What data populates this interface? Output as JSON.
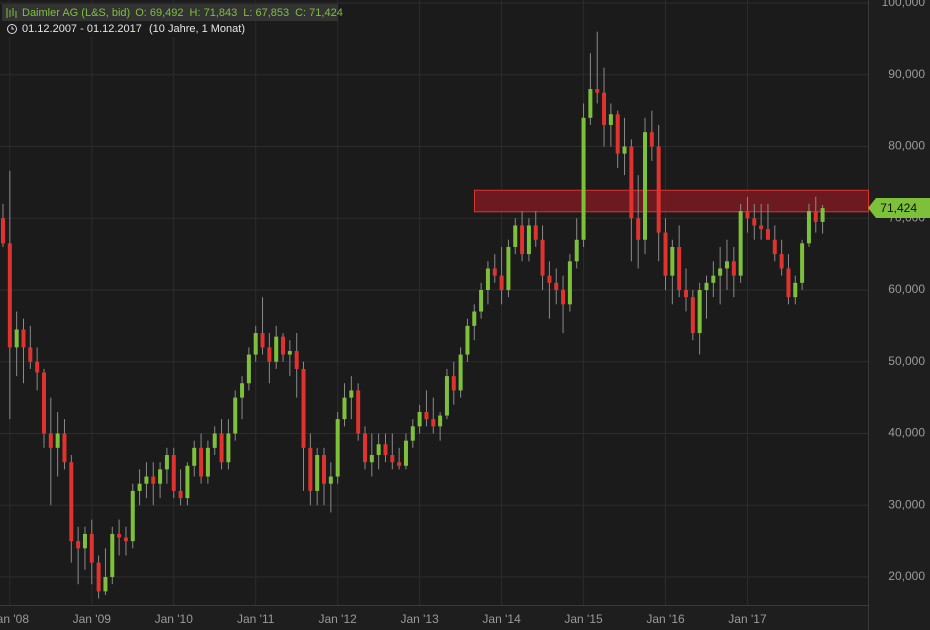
{
  "chart_data": {
    "type": "candlestick",
    "title": "Daimler AG (L&S, bid)",
    "ohlc_labels": [
      "O: 69,492",
      "H: 71,843",
      "L: 67,853",
      "C: 71,424"
    ],
    "period": "01.12.2007 - 01.12.2017",
    "period_note": "(10 Jahre, 1 Monat)",
    "x": [
      "2007-12",
      "2008-01",
      "2008-02",
      "2008-03",
      "2008-04",
      "2008-05",
      "2008-06",
      "2008-07",
      "2008-08",
      "2008-09",
      "2008-10",
      "2008-11",
      "2008-12",
      "2009-01",
      "2009-02",
      "2009-03",
      "2009-04",
      "2009-05",
      "2009-06",
      "2009-07",
      "2009-08",
      "2009-09",
      "2009-10",
      "2009-11",
      "2009-12",
      "2010-01",
      "2010-02",
      "2010-03",
      "2010-04",
      "2010-05",
      "2010-06",
      "2010-07",
      "2010-08",
      "2010-09",
      "2010-10",
      "2010-11",
      "2010-12",
      "2011-01",
      "2011-02",
      "2011-03",
      "2011-04",
      "2011-05",
      "2011-06",
      "2011-07",
      "2011-08",
      "2011-09",
      "2011-10",
      "2011-11",
      "2011-12",
      "2012-01",
      "2012-02",
      "2012-03",
      "2012-04",
      "2012-05",
      "2012-06",
      "2012-07",
      "2012-08",
      "2012-09",
      "2012-10",
      "2012-11",
      "2012-12",
      "2013-01",
      "2013-02",
      "2013-03",
      "2013-04",
      "2013-05",
      "2013-06",
      "2013-07",
      "2013-08",
      "2013-09",
      "2013-10",
      "2013-11",
      "2013-12",
      "2014-01",
      "2014-02",
      "2014-03",
      "2014-04",
      "2014-05",
      "2014-06",
      "2014-07",
      "2014-08",
      "2014-09",
      "2014-10",
      "2014-11",
      "2014-12",
      "2015-01",
      "2015-02",
      "2015-03",
      "2015-04",
      "2015-05",
      "2015-06",
      "2015-07",
      "2015-08",
      "2015-09",
      "2015-10",
      "2015-11",
      "2015-12",
      "2016-01",
      "2016-02",
      "2016-03",
      "2016-04",
      "2016-05",
      "2016-06",
      "2016-07",
      "2016-08",
      "2016-09",
      "2016-10",
      "2016-11",
      "2016-12",
      "2017-01",
      "2017-02",
      "2017-03",
      "2017-04",
      "2017-05",
      "2017-06",
      "2017-07",
      "2017-08",
      "2017-09",
      "2017-10",
      "2017-11",
      "2017-12"
    ],
    "open": [
      70000,
      66500,
      52000,
      54500,
      52000,
      50000,
      48500,
      40000,
      38000,
      40000,
      36000,
      25000,
      24000,
      26000,
      22000,
      18000,
      20000,
      26000,
      25500,
      25000,
      32000,
      33000,
      34000,
      33000,
      35000,
      37000,
      32000,
      31000,
      35500,
      38000,
      34000,
      38000,
      40000,
      36000,
      40000,
      45000,
      47000,
      51000,
      54000,
      52000,
      50000,
      53500,
      51000,
      51500,
      49000,
      38000,
      32000,
      37000,
      33000,
      34000,
      42000,
      45000,
      46000,
      40000,
      36000,
      37000,
      38500,
      37000,
      36000,
      35500,
      39000,
      41000,
      43000,
      42000,
      41000,
      42500,
      48000,
      46000,
      51000,
      55000,
      57000,
      60000,
      63000,
      62000,
      60000,
      66000,
      69000,
      65000,
      69000,
      67000,
      62000,
      61000,
      60000,
      58000,
      64000,
      67000,
      84000,
      88000,
      87500,
      83000,
      84500,
      79000,
      80000,
      70000,
      67000,
      82000,
      80000,
      68000,
      62000,
      66000,
      60000,
      59000,
      54000,
      60000,
      61000,
      62000,
      63000,
      64000,
      62000,
      71000,
      70000,
      69000,
      68500,
      67000,
      65000,
      63000,
      59000,
      61000,
      66500,
      71000,
      69492
    ],
    "high": [
      72000,
      76600,
      57000,
      56000,
      55000,
      52000,
      49000,
      45000,
      43000,
      42000,
      37000,
      27000,
      27000,
      28000,
      23000,
      24000,
      27000,
      28000,
      27000,
      33000,
      35000,
      36000,
      36000,
      36000,
      38000,
      38000,
      35000,
      36000,
      39000,
      40000,
      39000,
      41000,
      42000,
      42000,
      46000,
      48000,
      52000,
      55000,
      59000,
      54000,
      55000,
      54000,
      53000,
      54000,
      50000,
      40000,
      38000,
      38000,
      36000,
      43000,
      47000,
      48000,
      47000,
      41000,
      40000,
      40000,
      40000,
      40000,
      38000,
      40000,
      42000,
      44000,
      46000,
      45000,
      43000,
      49000,
      50000,
      52000,
      56000,
      58000,
      61000,
      64000,
      65000,
      66000,
      67000,
      70000,
      71000,
      70000,
      71000,
      69000,
      64000,
      63000,
      62000,
      65000,
      70000,
      86000,
      93000,
      96000,
      91000,
      86000,
      85000,
      84000,
      81000,
      76000,
      84000,
      85000,
      83000,
      70000,
      67000,
      69000,
      63000,
      60000,
      61000,
      62000,
      64000,
      66000,
      67000,
      66000,
      72000,
      73000,
      72000,
      72000,
      72000,
      69000,
      67000,
      65000,
      62000,
      67000,
      72000,
      73000,
      71843
    ],
    "low": [
      66000,
      42000,
      48000,
      47000,
      49000,
      46000,
      38000,
      30000,
      34000,
      35000,
      22000,
      19000,
      21000,
      19000,
      17000,
      17500,
      19000,
      23000,
      23000,
      24000,
      30000,
      31000,
      30000,
      31000,
      33000,
      31000,
      30000,
      30000,
      34000,
      33000,
      33000,
      37000,
      35000,
      35000,
      39000,
      42000,
      46000,
      50000,
      51000,
      47000,
      49000,
      50000,
      48000,
      45000,
      32000,
      30000,
      30000,
      30000,
      29000,
      33000,
      41000,
      42000,
      39000,
      35000,
      34000,
      35000,
      36000,
      35000,
      35000,
      35000,
      38000,
      40000,
      41000,
      40000,
      39000,
      42000,
      44000,
      45000,
      50000,
      53000,
      56000,
      58000,
      61000,
      58000,
      59000,
      65000,
      64000,
      64000,
      66000,
      60000,
      56000,
      58000,
      54000,
      57000,
      63000,
      66000,
      83000,
      86000,
      80000,
      80000,
      77000,
      76000,
      64000,
      63000,
      65000,
      78000,
      64000,
      60000,
      58000,
      59000,
      57000,
      53000,
      51000,
      56000,
      59000,
      58000,
      60000,
      59000,
      61000,
      68000,
      67000,
      67000,
      67000,
      64000,
      62000,
      58000,
      58000,
      60000,
      66000,
      68000,
      67853
    ],
    "close": [
      66500,
      52000,
      54500,
      52000,
      50000,
      48500,
      40000,
      38000,
      40000,
      36000,
      25000,
      24000,
      26000,
      22000,
      18000,
      20000,
      26000,
      25500,
      25000,
      32000,
      33000,
      34000,
      33000,
      35000,
      37000,
      32000,
      31000,
      35500,
      38000,
      34000,
      38000,
      40000,
      36000,
      40000,
      45000,
      47000,
      51000,
      54000,
      52000,
      50000,
      53500,
      51000,
      51500,
      49000,
      38000,
      32000,
      37000,
      33000,
      34000,
      42000,
      45000,
      46000,
      40000,
      36000,
      37000,
      38500,
      37000,
      36000,
      35500,
      39000,
      41000,
      43000,
      42000,
      41000,
      42500,
      48000,
      46000,
      51000,
      55000,
      57000,
      60000,
      63000,
      62000,
      60000,
      66000,
      69000,
      65000,
      69000,
      67000,
      62000,
      61000,
      60000,
      58000,
      64000,
      67000,
      84000,
      88000,
      87500,
      83000,
      84500,
      79000,
      80000,
      70000,
      67000,
      82000,
      80000,
      68000,
      62000,
      66000,
      60000,
      59000,
      54000,
      60000,
      61000,
      62000,
      63000,
      64000,
      62000,
      71000,
      70000,
      69000,
      68500,
      67000,
      65000,
      63000,
      59000,
      61000,
      66500,
      71000,
      69500,
      71424
    ],
    "last_price": {
      "value": 71424,
      "label": "71,424"
    },
    "highlight_band": [
      70900,
      73900
    ],
    "up_color": "#7dc13a",
    "down_color": "#e0322f",
    "band_color": "#7a1a20",
    "ylim": [
      16000,
      100000
    ],
    "yticks": [
      {
        "value": 20000,
        "label": "20,000"
      },
      {
        "value": 30000,
        "label": "30,000"
      },
      {
        "value": 40000,
        "label": "40,000"
      },
      {
        "value": 50000,
        "label": "50,000"
      },
      {
        "value": 60000,
        "label": "60,000"
      },
      {
        "value": 70000,
        "label": "70,000"
      },
      {
        "value": 80000,
        "label": "80,000"
      },
      {
        "value": 90000,
        "label": "90,000"
      },
      {
        "value": 100000,
        "label": "100,000"
      }
    ],
    "xticks": [
      {
        "value": "2008-01",
        "label": "Jan '08"
      },
      {
        "value": "2009-01",
        "label": "Jan '09"
      },
      {
        "value": "2010-01",
        "label": "Jan '10"
      },
      {
        "value": "2011-01",
        "label": "Jan '11"
      },
      {
        "value": "2012-01",
        "label": "Jan '12"
      },
      {
        "value": "2013-01",
        "label": "Jan '13"
      },
      {
        "value": "2014-01",
        "label": "Jan '14"
      },
      {
        "value": "2015-01",
        "label": "Jan '15"
      },
      {
        "value": "2016-01",
        "label": "Jan '16"
      },
      {
        "value": "2017-01",
        "label": "Jan '17"
      }
    ],
    "grid": true
  }
}
